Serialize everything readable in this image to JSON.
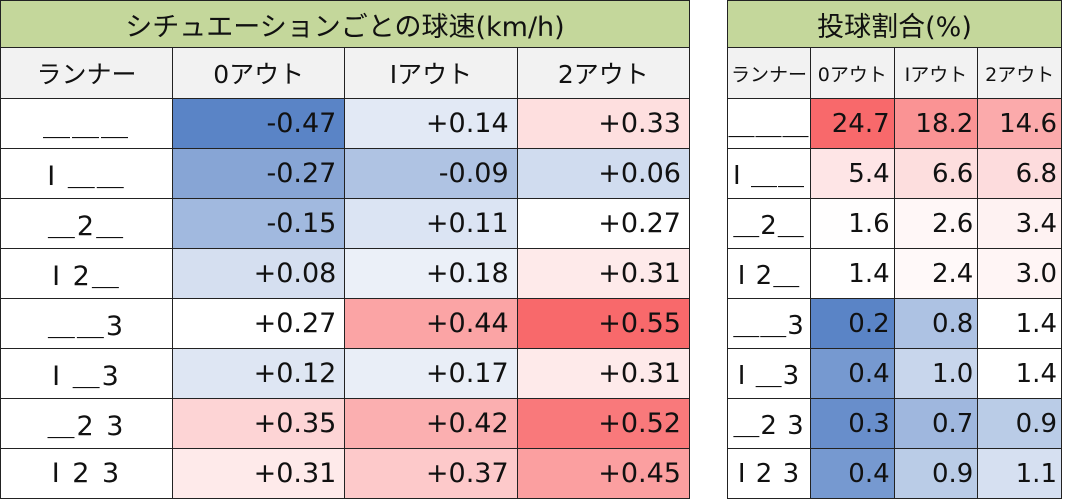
{
  "chart_data": [
    {
      "type": "table",
      "title": "シチュエーションごとの球速(km/h)",
      "row_header": "ランナー",
      "columns": [
        "0アウト",
        "Iアウト",
        "2アウト"
      ],
      "rows": [
        "＿＿＿",
        "I ＿＿",
        "＿2＿",
        "I 2＿",
        "＿＿3",
        "I ＿3",
        "＿2 3",
        "I 2 3"
      ],
      "cells": [
        [
          "-0.47",
          "+0.14",
          "+0.33"
        ],
        [
          "-0.27",
          "-0.09",
          "+0.06"
        ],
        [
          "-0.15",
          "+0.11",
          "+0.27"
        ],
        [
          "+0.08",
          "+0.18",
          "+0.31"
        ],
        [
          "+0.27",
          "+0.44",
          "+0.55"
        ],
        [
          "+0.12",
          "+0.17",
          "+0.31"
        ],
        [
          "+0.35",
          "+0.42",
          "+0.52"
        ],
        [
          "+0.31",
          "+0.37",
          "+0.45"
        ]
      ],
      "values": [
        [
          -0.47,
          0.14,
          0.33
        ],
        [
          -0.27,
          -0.09,
          0.06
        ],
        [
          -0.15,
          0.11,
          0.27
        ],
        [
          0.08,
          0.18,
          0.31
        ],
        [
          0.27,
          0.44,
          0.55
        ],
        [
          0.12,
          0.17,
          0.31
        ],
        [
          0.35,
          0.42,
          0.52
        ],
        [
          0.31,
          0.37,
          0.45
        ]
      ],
      "color_scale": {
        "low": "#5a84c6",
        "mid": "#ffffff",
        "high": "#f8696b"
      }
    },
    {
      "type": "table",
      "title": "投球割合(%)",
      "row_header": "ランナー",
      "columns": [
        "0アウト",
        "Iアウト",
        "2アウト"
      ],
      "rows": [
        "＿＿＿",
        "I ＿＿",
        "＿2＿",
        "I 2＿",
        "＿＿3",
        "I ＿3",
        "＿2 3",
        "I 2 3"
      ],
      "cells": [
        [
          "24.7",
          "18.2",
          "14.6"
        ],
        [
          "5.4",
          "6.6",
          "6.8"
        ],
        [
          "1.6",
          "2.6",
          "3.4"
        ],
        [
          "1.4",
          "2.4",
          "3.0"
        ],
        [
          "0.2",
          "0.8",
          "1.4"
        ],
        [
          "0.4",
          "1.0",
          "1.4"
        ],
        [
          "0.3",
          "0.7",
          "0.9"
        ],
        [
          "0.4",
          "0.9",
          "1.1"
        ]
      ],
      "values": [
        [
          24.7,
          18.2,
          14.6
        ],
        [
          5.4,
          6.6,
          6.8
        ],
        [
          1.6,
          2.6,
          3.4
        ],
        [
          1.4,
          2.4,
          3.0
        ],
        [
          0.2,
          0.8,
          1.4
        ],
        [
          0.4,
          1.0,
          1.4
        ],
        [
          0.3,
          0.7,
          0.9
        ],
        [
          0.4,
          0.9,
          1.1
        ]
      ],
      "color_scale": {
        "low": "#5a84c6",
        "mid": "#ffffff",
        "high": "#f8696b"
      }
    }
  ]
}
